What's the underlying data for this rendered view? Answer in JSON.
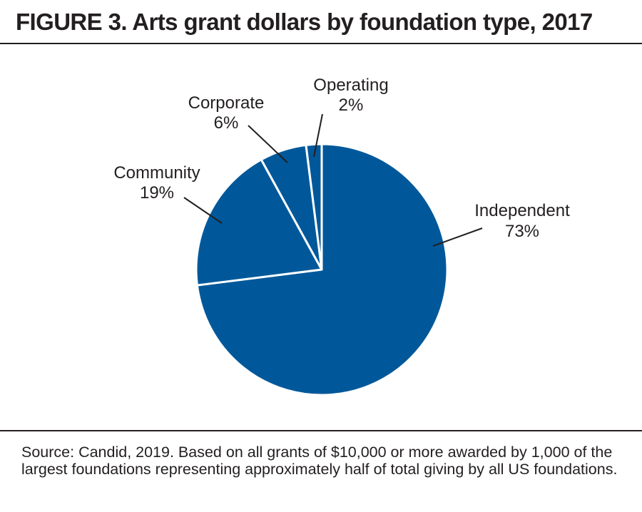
{
  "figure": {
    "title": "FIGURE 3. Arts grant dollars by foundation type, 2017",
    "source": "Source: Candid, 2019. Based on all grants of $10,000 or more awarded by 1,000 of the largest foundations representing approximately half of total giving by all US foundations."
  },
  "chart_data": {
    "type": "pie",
    "title": "FIGURE 3. Arts grant dollars by foundation type, 2017",
    "slices": [
      {
        "label": "Independent",
        "value": 73,
        "value_label": "73%"
      },
      {
        "label": "Community",
        "value": 19,
        "value_label": "19%"
      },
      {
        "label": "Corporate",
        "value": 6,
        "value_label": "6%"
      },
      {
        "label": "Operating",
        "value": 2,
        "value_label": "2%"
      }
    ],
    "colors": {
      "slice_fill": "#00589a",
      "slice_border": "#ffffff",
      "leader_line": "#231f20"
    },
    "legend": "none",
    "labels": "outside with leader lines"
  }
}
